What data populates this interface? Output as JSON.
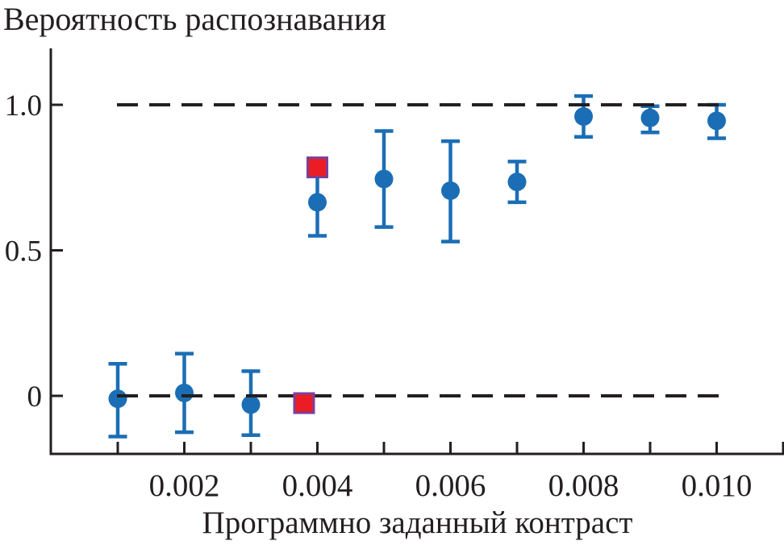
{
  "figure": {
    "title": "Вероятность распознавания",
    "x_axis_label": "Программно заданный контраст"
  },
  "colors": {
    "marker_blue": "#1b6eb5",
    "marker_red": "#ec1c24",
    "square_border_purple": "#7c3f98",
    "axis_black": "#231f20",
    "background": "#ffffff"
  },
  "chart_data": {
    "type": "scatter",
    "title": "Вероятность распознавания",
    "xlabel": "Программно заданный контраст",
    "ylabel": "",
    "xlim": [
      0,
      0.011
    ],
    "ylim": [
      -0.2,
      1.19
    ],
    "grid": false,
    "legend": "none",
    "x_minor_tick_values": [
      0.001,
      0.002,
      0.003,
      0.004,
      0.005,
      0.006,
      0.007,
      0.008,
      0.009,
      0.01,
      0.011
    ],
    "x_ticks": [
      {
        "value": 0.002,
        "label": "0.002"
      },
      {
        "value": 0.004,
        "label": "0.004"
      },
      {
        "value": 0.006,
        "label": "0.006"
      },
      {
        "value": 0.008,
        "label": "0.008"
      },
      {
        "value": 0.01,
        "label": "0.010"
      }
    ],
    "y_ticks": [
      {
        "value": 1.0,
        "label": "1.0"
      },
      {
        "value": 0.5,
        "label": "0.5"
      },
      {
        "value": 0.0,
        "label": "0"
      }
    ],
    "reference_lines": [
      {
        "y": 1.0,
        "style": "dashed"
      },
      {
        "y": 0.0,
        "style": "dashed"
      }
    ],
    "series": [
      {
        "name": "blue-circles-with-error-bars",
        "marker": "circle",
        "color": "#1b6eb5",
        "points": [
          {
            "x": 0.001,
            "y": -0.01,
            "y_lo": -0.14,
            "y_hi": 0.11
          },
          {
            "x": 0.002,
            "y": 0.01,
            "y_lo": -0.125,
            "y_hi": 0.145
          },
          {
            "x": 0.003,
            "y": -0.03,
            "y_lo": -0.135,
            "y_hi": 0.085
          },
          {
            "x": 0.004,
            "y": 0.665,
            "y_lo": 0.55,
            "y_hi": 0.76
          },
          {
            "x": 0.005,
            "y": 0.745,
            "y_lo": 0.58,
            "y_hi": 0.91
          },
          {
            "x": 0.006,
            "y": 0.705,
            "y_lo": 0.53,
            "y_hi": 0.875
          },
          {
            "x": 0.007,
            "y": 0.735,
            "y_lo": 0.665,
            "y_hi": 0.805
          },
          {
            "x": 0.008,
            "y": 0.96,
            "y_lo": 0.89,
            "y_hi": 1.03
          },
          {
            "x": 0.009,
            "y": 0.955,
            "y_lo": 0.905,
            "y_hi": 0.995
          },
          {
            "x": 0.01,
            "y": 0.945,
            "y_lo": 0.885,
            "y_hi": 1.0
          }
        ]
      },
      {
        "name": "red-squares",
        "marker": "square",
        "color": "#ec1c24",
        "border_color": "#7c3f98",
        "points": [
          {
            "x": 0.004,
            "y": 0.785
          },
          {
            "x": 0.0038,
            "y": -0.025
          }
        ]
      }
    ]
  }
}
